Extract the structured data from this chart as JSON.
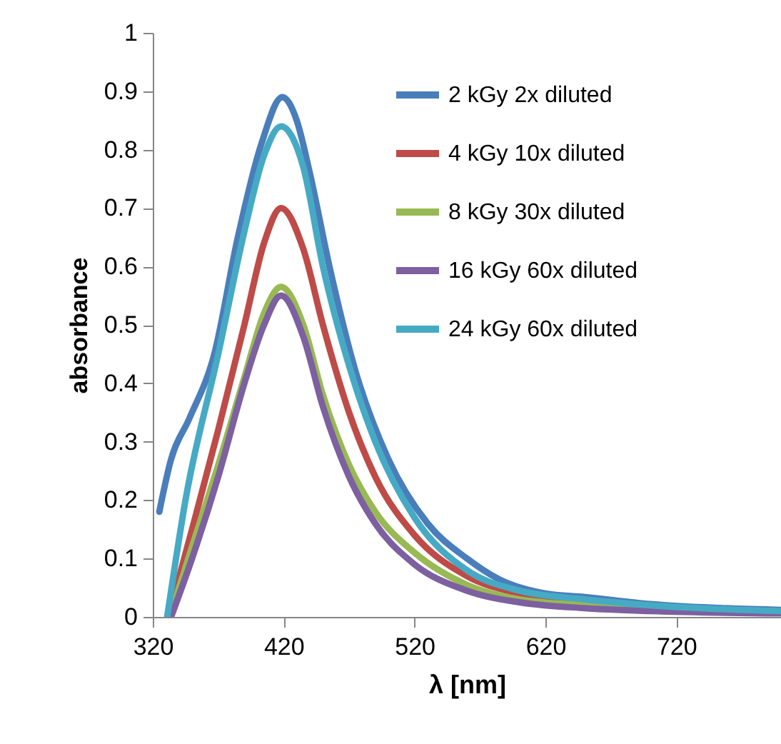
{
  "chart_data": {
    "type": "line",
    "xlabel": "λ [nm]",
    "ylabel": "absorbance",
    "xlim": [
      320,
      800
    ],
    "xticks": [
      320,
      420,
      520,
      620,
      720
    ],
    "ylim": [
      0,
      1
    ],
    "yticks": [
      0,
      0.1,
      0.2,
      0.3,
      0.4,
      0.5,
      0.6,
      0.7,
      0.8,
      0.9,
      1
    ],
    "grid": false,
    "legend": "top right",
    "marker": "none",
    "line_style": "solid",
    "series": [
      {
        "name": "2 kGy 2x diluted",
        "color": "#4a7ebb",
        "x": [
          325,
          334,
          348,
          367,
          385,
          403,
          419,
          430,
          440,
          455,
          475,
          500,
          530,
          560,
          584,
          620,
          650,
          700,
          800
        ],
        "values": [
          0.18,
          0.27,
          0.34,
          0.45,
          0.65,
          0.81,
          0.89,
          0.85,
          0.76,
          0.6,
          0.42,
          0.27,
          0.16,
          0.1,
          0.065,
          0.04,
          0.034,
          0.022,
          0.012
        ]
      },
      {
        "name": "4 kGy 10x diluted",
        "color": "#be4b48",
        "x": [
          332,
          350,
          370,
          390,
          405,
          418,
          435,
          450,
          470,
          490,
          520,
          560,
          600,
          650,
          700,
          800
        ],
        "values": [
          0,
          0.15,
          0.32,
          0.5,
          0.64,
          0.7,
          0.63,
          0.5,
          0.35,
          0.24,
          0.14,
          0.07,
          0.04,
          0.025,
          0.015,
          0.01
        ]
      },
      {
        "name": "8 kGy 30x diluted",
        "color": "#98b954",
        "x": [
          333,
          350,
          370,
          390,
          405,
          418,
          435,
          450,
          470,
          490,
          520,
          560,
          600,
          650,
          700,
          800
        ],
        "values": [
          0,
          0.12,
          0.26,
          0.41,
          0.52,
          0.565,
          0.5,
          0.38,
          0.26,
          0.18,
          0.11,
          0.055,
          0.03,
          0.02,
          0.012,
          0.008
        ]
      },
      {
        "name": "16 kGy 60x diluted",
        "color": "#7d60a0",
        "x": [
          334,
          350,
          370,
          390,
          405,
          418,
          435,
          450,
          470,
          490,
          520,
          560,
          600,
          650,
          700,
          800
        ],
        "values": [
          0,
          0.1,
          0.24,
          0.4,
          0.5,
          0.55,
          0.48,
          0.36,
          0.24,
          0.16,
          0.09,
          0.045,
          0.025,
          0.015,
          0.01,
          0.006
        ]
      },
      {
        "name": "24 kGy 60x diluted",
        "color": "#46aac5",
        "x": [
          331,
          345,
          370,
          390,
          405,
          418,
          435,
          450,
          470,
          490,
          520,
          560,
          600,
          650,
          700,
          800
        ],
        "values": [
          0,
          0.2,
          0.45,
          0.66,
          0.79,
          0.84,
          0.77,
          0.6,
          0.43,
          0.3,
          0.17,
          0.08,
          0.045,
          0.03,
          0.02,
          0.01
        ]
      }
    ]
  }
}
